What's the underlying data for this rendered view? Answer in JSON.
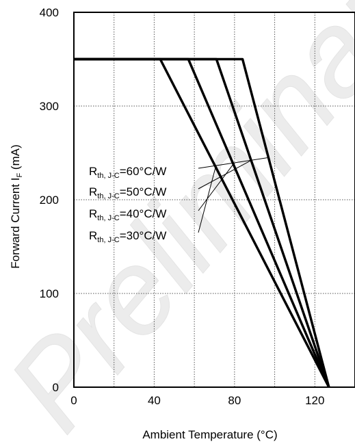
{
  "chart_data": {
    "type": "line",
    "xlabel": "Ambient Temperature (°C)",
    "ylabel": {
      "main": "Forward Current I",
      "sub": "F",
      "unit": " (mA)"
    },
    "xlim": [
      0,
      140
    ],
    "ylim": [
      0,
      400
    ],
    "xticks": [
      0,
      40,
      80,
      120
    ],
    "yticks": [
      0,
      100,
      200,
      300,
      400
    ],
    "grid": "dotted",
    "watermark": "Preliminary",
    "series": [
      {
        "name": "Rth, J-C=60°C/W",
        "label": {
          "main": "R",
          "sub": "th, J-C",
          "rest": "=60°C/W"
        },
        "x": [
          0,
          84,
          127
        ],
        "y": [
          350,
          350,
          0
        ]
      },
      {
        "name": "Rth, J-C=50°C/W",
        "label": {
          "main": "R",
          "sub": "th, J-C",
          "rest": "=50°C/W"
        },
        "x": [
          0,
          71,
          127
        ],
        "y": [
          350,
          350,
          0
        ]
      },
      {
        "name": "Rth, J-C=40°C/W",
        "label": {
          "main": "R",
          "sub": "th, J-C",
          "rest": "=40°C/W"
        },
        "x": [
          0,
          57,
          127
        ],
        "y": [
          350,
          350,
          0
        ]
      },
      {
        "name": "Rth, J-C=30°C/W",
        "label": {
          "main": "R",
          "sub": "th, J-C",
          "rest": "=30°C/W"
        },
        "x": [
          0,
          43,
          127
        ],
        "y": [
          350,
          350,
          0
        ]
      }
    ]
  }
}
